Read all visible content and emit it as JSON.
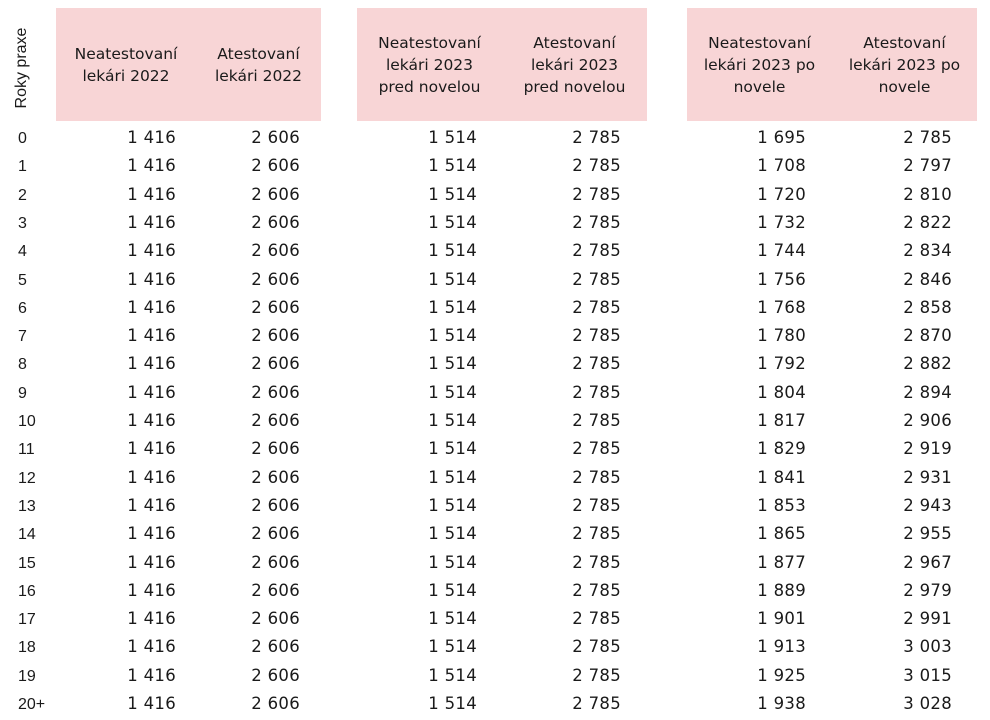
{
  "table": {
    "row_header_label": "Roky praxe",
    "header_color": "#f8d5d6",
    "columns": [
      "Neatestovaní lekári 2022",
      "Atestovaní lekári 2022",
      "Neatestovaní lekári 2023 pred novelou",
      "Atestovaní lekári 2023 pred novelou",
      "Neatestovaní lekári 2023 po novele",
      "Atestovaní lekári 2023 po novele"
    ],
    "column_lines": [
      [
        "Neatestovaní",
        "lekári 2022"
      ],
      [
        "Atestovaní",
        "lekári 2022"
      ],
      [
        "Neatestovaní",
        "lekári 2023",
        "pred novelou"
      ],
      [
        "Atestovaní",
        "lekári 2023",
        "pred novelou"
      ],
      [
        "Neatestovaní",
        "lekári 2023 po",
        "novele"
      ],
      [
        "Atestovaní",
        "lekári 2023 po",
        "novele"
      ]
    ],
    "rows": [
      {
        "years": "0",
        "values": [
          "1 416",
          "2 606",
          "1 514",
          "2 785",
          "1 695",
          "2 785"
        ]
      },
      {
        "years": "1",
        "values": [
          "1 416",
          "2 606",
          "1 514",
          "2 785",
          "1 708",
          "2 797"
        ]
      },
      {
        "years": "2",
        "values": [
          "1 416",
          "2 606",
          "1 514",
          "2 785",
          "1 720",
          "2 810"
        ]
      },
      {
        "years": "3",
        "values": [
          "1 416",
          "2 606",
          "1 514",
          "2 785",
          "1 732",
          "2 822"
        ]
      },
      {
        "years": "4",
        "values": [
          "1 416",
          "2 606",
          "1 514",
          "2 785",
          "1 744",
          "2 834"
        ]
      },
      {
        "years": "5",
        "values": [
          "1 416",
          "2 606",
          "1 514",
          "2 785",
          "1 756",
          "2 846"
        ]
      },
      {
        "years": "6",
        "values": [
          "1 416",
          "2 606",
          "1 514",
          "2 785",
          "1 768",
          "2 858"
        ]
      },
      {
        "years": "7",
        "values": [
          "1 416",
          "2 606",
          "1 514",
          "2 785",
          "1 780",
          "2 870"
        ]
      },
      {
        "years": "8",
        "values": [
          "1 416",
          "2 606",
          "1 514",
          "2 785",
          "1 792",
          "2 882"
        ]
      },
      {
        "years": "9",
        "values": [
          "1 416",
          "2 606",
          "1 514",
          "2 785",
          "1 804",
          "2 894"
        ]
      },
      {
        "years": "10",
        "values": [
          "1 416",
          "2 606",
          "1 514",
          "2 785",
          "1 817",
          "2 906"
        ]
      },
      {
        "years": "11",
        "values": [
          "1 416",
          "2 606",
          "1 514",
          "2 785",
          "1 829",
          "2 919"
        ]
      },
      {
        "years": "12",
        "values": [
          "1 416",
          "2 606",
          "1 514",
          "2 785",
          "1 841",
          "2 931"
        ]
      },
      {
        "years": "13",
        "values": [
          "1 416",
          "2 606",
          "1 514",
          "2 785",
          "1 853",
          "2 943"
        ]
      },
      {
        "years": "14",
        "values": [
          "1 416",
          "2 606",
          "1 514",
          "2 785",
          "1 865",
          "2 955"
        ]
      },
      {
        "years": "15",
        "values": [
          "1 416",
          "2 606",
          "1 514",
          "2 785",
          "1 877",
          "2 967"
        ]
      },
      {
        "years": "16",
        "values": [
          "1 416",
          "2 606",
          "1 514",
          "2 785",
          "1 889",
          "2 979"
        ]
      },
      {
        "years": "17",
        "values": [
          "1 416",
          "2 606",
          "1 514",
          "2 785",
          "1 901",
          "2 991"
        ]
      },
      {
        "years": "18",
        "values": [
          "1 416",
          "2 606",
          "1 514",
          "2 785",
          "1 913",
          "3 003"
        ]
      },
      {
        "years": "19",
        "values": [
          "1 416",
          "2 606",
          "1 514",
          "2 785",
          "1 925",
          "3 015"
        ]
      },
      {
        "years": "20+",
        "values": [
          "1 416",
          "2 606",
          "1 514",
          "2 785",
          "1 938",
          "3 028"
        ]
      }
    ]
  }
}
